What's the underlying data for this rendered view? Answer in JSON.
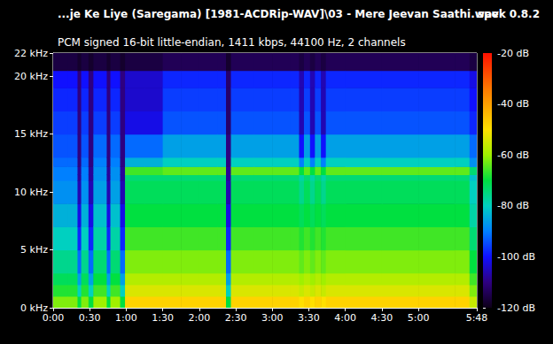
{
  "chart_data": {
    "type": "heatmap",
    "title": "...je Ke Liye (Saregama) [1981-ACDRip-WAV]\\03 - Mere Jeevan Saathi.wav",
    "subtitle": "PCM signed 16-bit little-endian, 1411 kbps, 44100 Hz, 2 channels",
    "annotations": [
      "spek 0.8.2"
    ],
    "xlim": [
      0,
      348
    ],
    "xticks": [
      {
        "value": 0,
        "label": "0:00"
      },
      {
        "value": 30,
        "label": "0:30"
      },
      {
        "value": 60,
        "label": "1:00"
      },
      {
        "value": 90,
        "label": "1:30"
      },
      {
        "value": 120,
        "label": "2:00"
      },
      {
        "value": 150,
        "label": "2:30"
      },
      {
        "value": 180,
        "label": "3:00"
      },
      {
        "value": 210,
        "label": "3:30"
      },
      {
        "value": 240,
        "label": "4:00"
      },
      {
        "value": 270,
        "label": "4:30"
      },
      {
        "value": 300,
        "label": "5:00"
      },
      {
        "value": 348,
        "label": "5:48"
      }
    ],
    "ylim": [
      0,
      22
    ],
    "yticks": [
      {
        "value": 0,
        "label": "0 kHz"
      },
      {
        "value": 5,
        "label": "5 kHz"
      },
      {
        "value": 10,
        "label": "10 kHz"
      },
      {
        "value": 15,
        "label": "15 kHz"
      },
      {
        "value": 20,
        "label": "20 kHz"
      },
      {
        "value": 22,
        "label": "22 kHz"
      }
    ],
    "colorbar": {
      "range": [
        -120,
        -20
      ],
      "ticks": [
        {
          "value": -20,
          "label": "-20 dB"
        },
        {
          "value": -40,
          "label": "-40 dB"
        },
        {
          "value": -60,
          "label": "-60 dB"
        },
        {
          "value": -80,
          "label": "-80 dB"
        },
        {
          "value": -100,
          "label": "-100 dB"
        },
        {
          "value": -120,
          "label": "-120 dB"
        }
      ]
    },
    "time_edges": [
      0,
      12,
      20,
      23,
      29,
      33,
      44,
      47,
      55,
      59,
      75,
      90,
      105,
      120,
      135,
      142,
      146,
      165,
      180,
      195,
      202,
      206,
      211,
      215,
      220,
      224,
      240,
      270,
      300,
      330,
      342,
      348
    ],
    "freq_edges": [
      0,
      1,
      2,
      3,
      5,
      7,
      9,
      11,
      11.5,
      12.2,
      13,
      15,
      17,
      19,
      20.5,
      22
    ],
    "cells": [
      [
        -62,
        -68,
        -72,
        -76,
        -80,
        -84,
        -88,
        -90,
        -90,
        -92,
        -94,
        -96,
        -98,
        -100,
        -116
      ],
      [
        -62,
        -68,
        -72,
        -76,
        -80,
        -84,
        -88,
        -90,
        -90,
        -92,
        -94,
        -96,
        -98,
        -100,
        -116
      ],
      [
        -70,
        -80,
        -86,
        -92,
        -98,
        -102,
        -106,
        -108,
        -108,
        -110,
        -110,
        -110,
        -110,
        -110,
        -118
      ],
      [
        -62,
        -68,
        -72,
        -76,
        -80,
        -84,
        -88,
        -90,
        -90,
        -92,
        -94,
        -96,
        -98,
        -100,
        -116
      ],
      [
        -70,
        -80,
        -86,
        -92,
        -98,
        -102,
        -106,
        -108,
        -108,
        -110,
        -110,
        -110,
        -110,
        -110,
        -118
      ],
      [
        -60,
        -66,
        -70,
        -74,
        -78,
        -82,
        -86,
        -88,
        -88,
        -90,
        -92,
        -96,
        -98,
        -100,
        -116
      ],
      [
        -70,
        -80,
        -86,
        -92,
        -98,
        -102,
        -106,
        -108,
        -108,
        -110,
        -110,
        -110,
        -110,
        -110,
        -118
      ],
      [
        -60,
        -66,
        -70,
        -74,
        -78,
        -82,
        -86,
        -88,
        -88,
        -90,
        -92,
        -96,
        -98,
        -100,
        -116
      ],
      [
        -70,
        -80,
        -86,
        -92,
        -98,
        -102,
        -106,
        -108,
        -108,
        -110,
        -110,
        -110,
        -110,
        -110,
        -118
      ],
      [
        -48,
        -54,
        -58,
        -62,
        -66,
        -70,
        -72,
        -74,
        -66,
        -84,
        -92,
        -102,
        -104,
        -104,
        -116
      ],
      [
        -48,
        -54,
        -58,
        -62,
        -66,
        -70,
        -72,
        -74,
        -66,
        -84,
        -92,
        -102,
        -104,
        -104,
        -116
      ],
      [
        -48,
        -54,
        -58,
        -62,
        -66,
        -70,
        -72,
        -74,
        -64,
        -80,
        -86,
        -94,
        -96,
        -98,
        -114
      ],
      [
        -48,
        -54,
        -58,
        -62,
        -66,
        -70,
        -72,
        -74,
        -64,
        -80,
        -86,
        -94,
        -96,
        -98,
        -114
      ],
      [
        -48,
        -54,
        -58,
        -62,
        -66,
        -70,
        -72,
        -74,
        -64,
        -80,
        -86,
        -94,
        -96,
        -98,
        -114
      ],
      [
        -48,
        -54,
        -58,
        -62,
        -66,
        -70,
        -72,
        -74,
        -64,
        -80,
        -86,
        -94,
        -96,
        -98,
        -114
      ],
      [
        -70,
        -80,
        -86,
        -92,
        -98,
        -102,
        -106,
        -108,
        -108,
        -110,
        -110,
        -112,
        -112,
        -112,
        -118
      ],
      [
        -48,
        -54,
        -58,
        -62,
        -66,
        -70,
        -72,
        -74,
        -64,
        -80,
        -86,
        -94,
        -96,
        -98,
        -114
      ],
      [
        -48,
        -54,
        -58,
        -62,
        -66,
        -70,
        -72,
        -74,
        -64,
        -80,
        -86,
        -94,
        -96,
        -98,
        -114
      ],
      [
        -48,
        -54,
        -58,
        -62,
        -66,
        -70,
        -72,
        -74,
        -64,
        -80,
        -86,
        -94,
        -96,
        -98,
        -114
      ],
      [
        -48,
        -54,
        -58,
        -62,
        -66,
        -70,
        -72,
        -74,
        -64,
        -80,
        -86,
        -94,
        -96,
        -98,
        -114
      ],
      [
        -50,
        -56,
        -60,
        -64,
        -68,
        -72,
        -76,
        -78,
        -70,
        -90,
        -100,
        -106,
        -106,
        -106,
        -116
      ],
      [
        -48,
        -54,
        -58,
        -62,
        -66,
        -70,
        -72,
        -74,
        -64,
        -80,
        -86,
        -94,
        -96,
        -98,
        -114
      ],
      [
        -50,
        -56,
        -60,
        -64,
        -68,
        -72,
        -76,
        -78,
        -70,
        -90,
        -100,
        -106,
        -106,
        -106,
        -116
      ],
      [
        -48,
        -54,
        -58,
        -62,
        -66,
        -70,
        -72,
        -74,
        -64,
        -80,
        -86,
        -94,
        -96,
        -98,
        -114
      ],
      [
        -50,
        -56,
        -60,
        -64,
        -68,
        -72,
        -76,
        -78,
        -70,
        -90,
        -100,
        -106,
        -106,
        -106,
        -116
      ],
      [
        -48,
        -54,
        -58,
        -62,
        -66,
        -70,
        -72,
        -74,
        -64,
        -80,
        -86,
        -94,
        -96,
        -98,
        -114
      ],
      [
        -48,
        -54,
        -58,
        -62,
        -66,
        -70,
        -72,
        -74,
        -64,
        -80,
        -86,
        -94,
        -96,
        -98,
        -114
      ],
      [
        -48,
        -54,
        -58,
        -62,
        -66,
        -70,
        -72,
        -74,
        -64,
        -80,
        -86,
        -94,
        -96,
        -98,
        -114
      ],
      [
        -48,
        -54,
        -58,
        -62,
        -66,
        -70,
        -72,
        -74,
        -64,
        -80,
        -86,
        -94,
        -96,
        -98,
        -114
      ],
      [
        -48,
        -54,
        -58,
        -62,
        -66,
        -70,
        -72,
        -74,
        -64,
        -80,
        -86,
        -94,
        -96,
        -98,
        -114
      ],
      [
        -56,
        -62,
        -66,
        -70,
        -74,
        -78,
        -80,
        -82,
        -74,
        -88,
        -92,
        -98,
        -100,
        -102,
        -116
      ]
    ]
  }
}
